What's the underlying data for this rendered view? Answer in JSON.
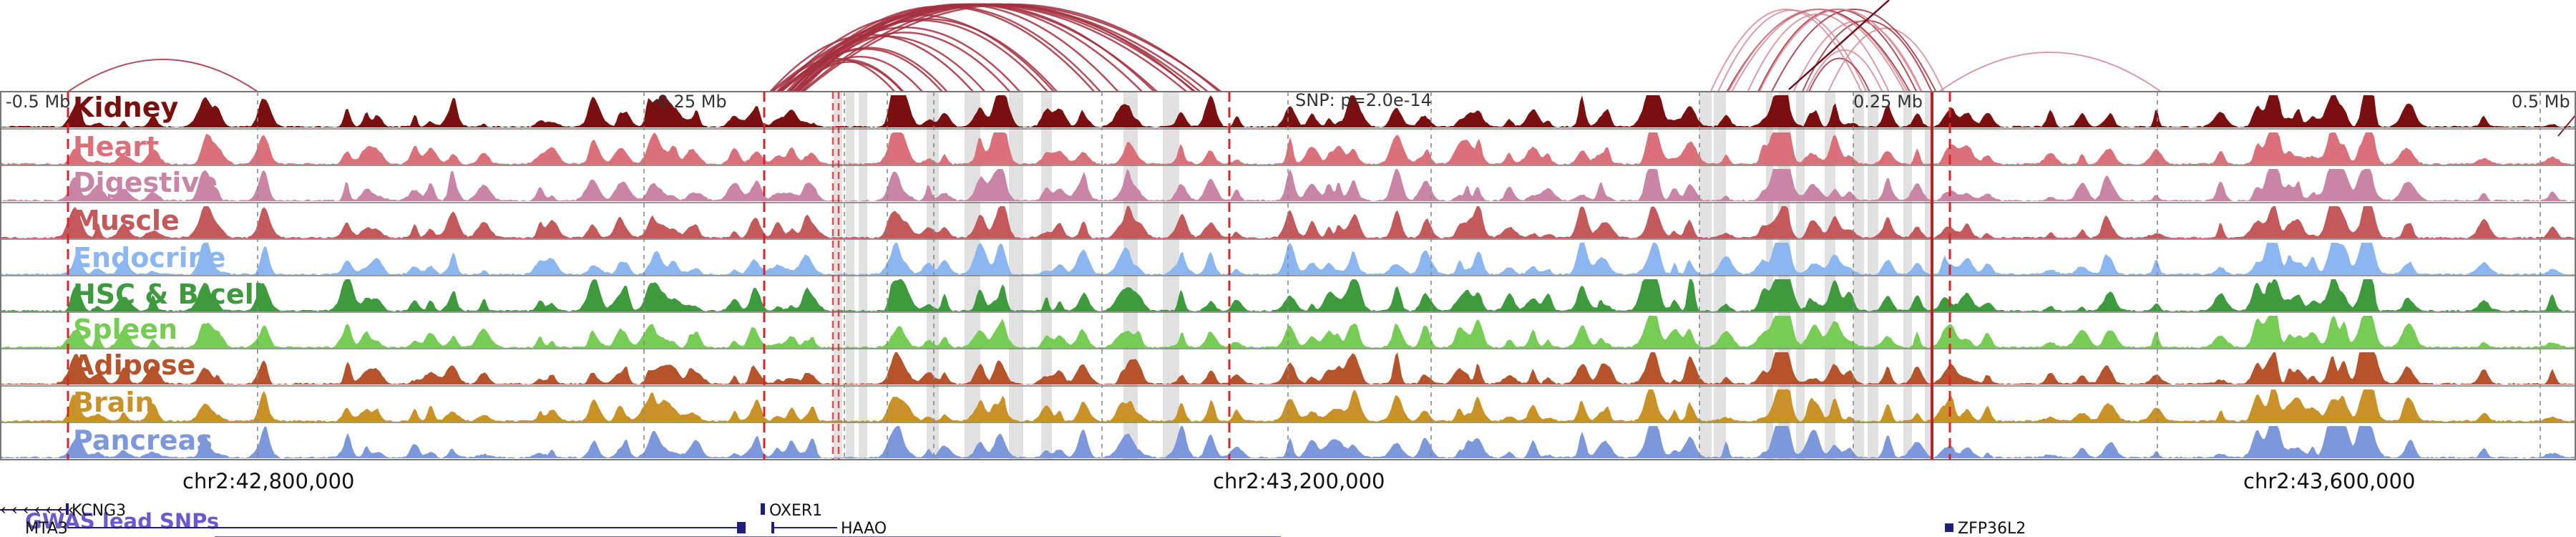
{
  "ruler": {
    "left_label": "-0.5 Mb",
    "mid_left_label": "-0.25 Mb",
    "snp_label": "SNP: p=2.0e-14",
    "mid_right_label": "0.25 Mb",
    "right_label": "0.5 Mb"
  },
  "tracks": [
    {
      "name": "Kidney",
      "color": "#7a0f10"
    },
    {
      "name": "Heart",
      "color": "#d9707a"
    },
    {
      "name": "Digestive",
      "color": "#c985a6"
    },
    {
      "name": "Muscle",
      "color": "#c4595b"
    },
    {
      "name": "Endocrine",
      "color": "#8cb6ef"
    },
    {
      "name": "HSC & B-cell",
      "color": "#3d9a3d"
    },
    {
      "name": "Spleen",
      "color": "#76cc55"
    },
    {
      "name": "Adipose",
      "color": "#b5532a"
    },
    {
      "name": "Brain",
      "color": "#c99228"
    },
    {
      "name": "Pancreas",
      "color": "#7c97da"
    }
  ],
  "coordinates": [
    "chr2:42,800,000",
    "chr2:43,200,000",
    "chr2:43,600,000"
  ],
  "gwas": {
    "title": "GWAS lead SNPs",
    "color": "#6a5acd"
  },
  "genes": [
    {
      "name": "KCNG3",
      "strand": "-"
    },
    {
      "name": "OXER1",
      "strand": "+"
    },
    {
      "name": "MTA3",
      "strand": "+"
    },
    {
      "name": "HAAO",
      "strand": "-"
    },
    {
      "name": "ZFP36L2",
      "strand": "-"
    }
  ],
  "colors": {
    "loop": "#a3303f",
    "loop_light": "#d48a95",
    "highlight": "#d9d9d9",
    "snp_line": "#d62728",
    "gene": "#1f1f7a"
  }
}
